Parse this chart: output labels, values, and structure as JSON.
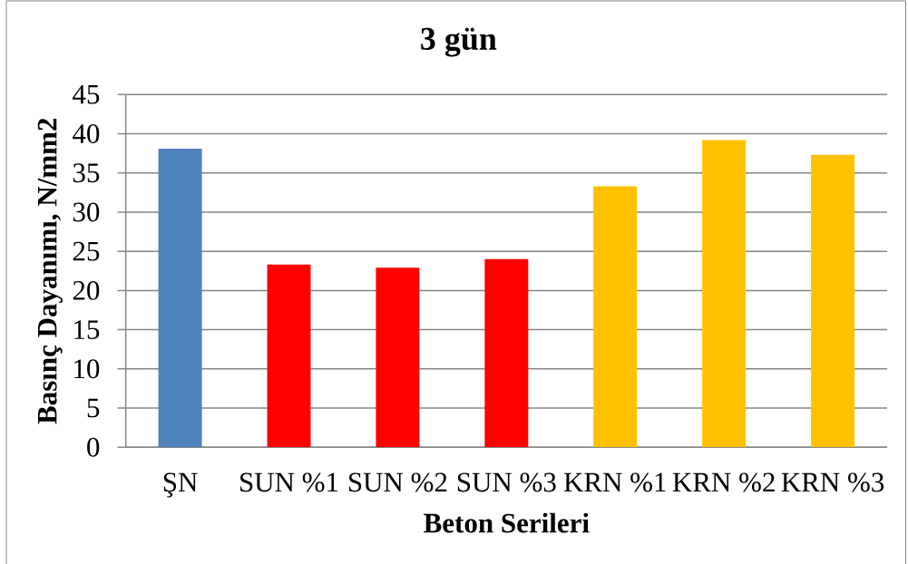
{
  "chart_data": {
    "type": "bar",
    "title": "3 gün",
    "xlabel": "Beton Serileri",
    "ylabel": "Basınç Dayanımı, N/mm2",
    "categories": [
      "ŞN",
      "SUN %1",
      "SUN %2",
      "SUN %3",
      "KRN %1",
      "KRN %2",
      "KRN %3"
    ],
    "values": [
      38.1,
      23.3,
      22.9,
      24.0,
      33.3,
      39.2,
      37.3
    ],
    "colors": [
      "#4f81bd",
      "#ff0000",
      "#ff0000",
      "#ff0000",
      "#ffc000",
      "#ffc000",
      "#ffc000"
    ],
    "ylim": [
      0,
      45
    ],
    "yticks": [
      0,
      5,
      10,
      15,
      20,
      25,
      30,
      35,
      40,
      45
    ],
    "grid": "y"
  }
}
